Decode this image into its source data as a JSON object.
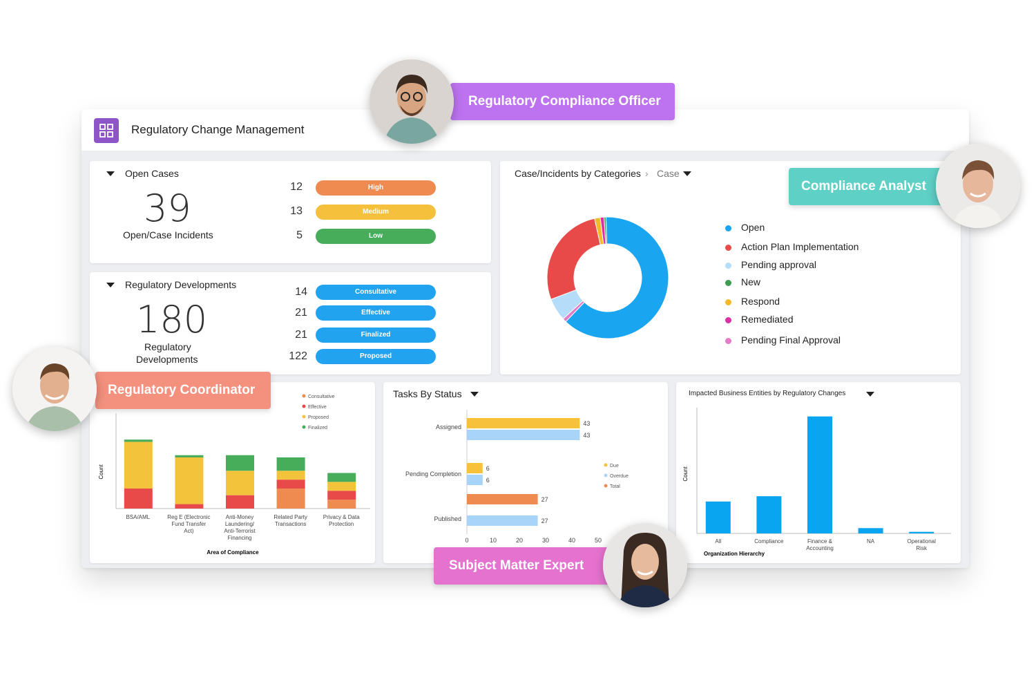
{
  "header": {
    "title": "Regulatory Change Management",
    "icon": "dashboard-grid-icon"
  },
  "open_cases": {
    "title": "Open Cases",
    "total": "39",
    "subtitle": "Open/Case Incidents",
    "rows": [
      {
        "count": "12",
        "label": "High",
        "color": "#ef8a50"
      },
      {
        "count": "13",
        "label": "Medium",
        "color": "#f5c13c"
      },
      {
        "count": "5",
        "label": "Low",
        "color": "#47ad5b"
      }
    ]
  },
  "reg_dev": {
    "title": "Regulatory Developments",
    "total": "180",
    "subtitle_line1": "Regulatory",
    "subtitle_line2": "Developments",
    "rows": [
      {
        "count": "14",
        "label": "Consultative",
        "color": "#21a3f0"
      },
      {
        "count": "21",
        "label": "Effective",
        "color": "#21a3f0"
      },
      {
        "count": "21",
        "label": "Finalized",
        "color": "#21a3f0"
      },
      {
        "count": "122",
        "label": "Proposed",
        "color": "#21a3f0"
      }
    ]
  },
  "categories": {
    "title": "Case/Incidents by Categories",
    "breadcrumb": "Case",
    "legend": [
      {
        "label": "Open",
        "color": "#1aa5f0"
      },
      {
        "label": "Action Plan Implementation",
        "color": "#e84a4a"
      },
      {
        "label": "Pending approval",
        "color": "#b5dcf8"
      },
      {
        "label": "New",
        "color": "#3e9b52"
      },
      {
        "label": "Respond",
        "color": "#f3b92a"
      },
      {
        "label": "Remediated",
        "color": "#dc2fa3"
      },
      {
        "label": "Pending Final Approval",
        "color": "#e37cc7"
      }
    ]
  },
  "tasks": {
    "title": "Tasks By Status"
  },
  "impacted": {
    "title": "Impacted Business Entities by Regulatory Changes"
  },
  "roles": {
    "officer": "Regulatory Compliance Officer",
    "analyst": "Compliance Analyst",
    "coordinator": "Regulatory Coordinator",
    "sme": "Subject Matter Expert"
  },
  "chart_data": [
    {
      "type": "pie",
      "categories": [
        "Open",
        "Action Plan Implementation",
        "Pending approval",
        "New",
        "Respond",
        "Remediated",
        "Pending Final Approval"
      ],
      "values": [
        62,
        27,
        6,
        0.5,
        1.5,
        1,
        1
      ],
      "colors": [
        "#1aa5f0",
        "#e84a4a",
        "#b5dcf8",
        "#3e9b52",
        "#f3b92a",
        "#dc2fa3",
        "#e37cc7"
      ]
    },
    {
      "type": "bar",
      "stacked": true,
      "xlabel": "Area of Compliance",
      "ylabel": "Count",
      "categories": [
        "BSA/AML",
        "Reg E (Electronic Fund Transfer Act)",
        "Anti-Money Laundering/ Anti-Terrorist Financing",
        "Related Party Transactions",
        "Privacy & Data Protection"
      ],
      "category_lines": [
        [
          "BSA/AML"
        ],
        [
          "Reg E (Electronic",
          "Fund Transfer",
          "Act)"
        ],
        [
          "Anti-Money",
          "Laundering/",
          "Anti-Terrorist",
          "Financing"
        ],
        [
          "Related Party",
          "Transactions"
        ],
        [
          "Privacy & Data",
          "Protection"
        ]
      ],
      "series": [
        {
          "name": "Consultative",
          "color": "#ef8a50",
          "values": [
            0,
            0,
            0,
            9,
            4
          ]
        },
        {
          "name": "Effective",
          "color": "#e84a4a",
          "values": [
            9,
            2,
            6,
            4,
            4
          ]
        },
        {
          "name": "Proposed",
          "color": "#f3c33c",
          "values": [
            21,
            21,
            11,
            4,
            4
          ]
        },
        {
          "name": "Finalized",
          "color": "#47ad5b",
          "values": [
            1,
            1,
            7,
            6,
            4
          ]
        }
      ],
      "ylim": [
        0,
        32
      ]
    },
    {
      "type": "bar",
      "orientation": "horizontal",
      "categories": [
        "Assigned",
        "Pending Completion",
        "Published"
      ],
      "series": [
        {
          "name": "Due",
          "color": "#f7c13a",
          "values": [
            43,
            6,
            null
          ]
        },
        {
          "name": "Overdue",
          "color": "#a9d4f9",
          "values": [
            43,
            6,
            27
          ]
        },
        {
          "name": "Total",
          "color": "#ef8a50",
          "values": [
            null,
            null,
            27
          ]
        }
      ],
      "xticks": [
        0,
        10,
        20,
        30,
        40,
        50
      ],
      "xlim": [
        0,
        50
      ]
    },
    {
      "type": "bar",
      "xlabel": "Organization Hierarchy",
      "ylabel": "Count",
      "categories": [
        "All",
        "Compliance",
        "Finance & Accounting",
        "NA",
        "Operational Risk"
      ],
      "category_lines": [
        [
          "All"
        ],
        [
          "Compliance"
        ],
        [
          "Finance &",
          "Accounting"
        ],
        [
          "NA"
        ],
        [
          "Operational",
          "Risk"
        ]
      ],
      "values": [
        6,
        7,
        22,
        1,
        0.3
      ],
      "color": "#0aa5f0",
      "ylim": [
        0,
        23
      ]
    }
  ]
}
